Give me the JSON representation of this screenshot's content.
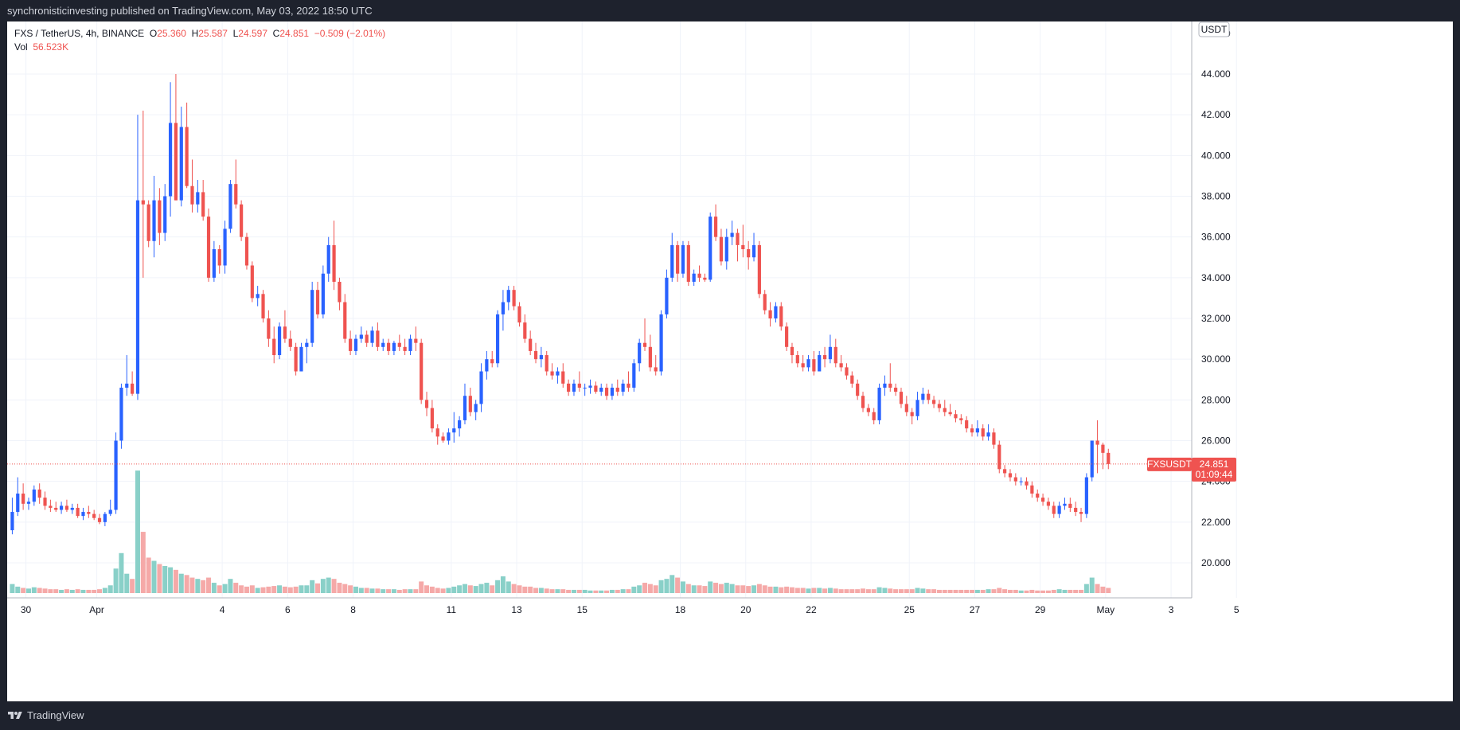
{
  "top_bar": {
    "published_text": "synchronisticinvesting published on TradingView.com, May 03, 2022 18:50 UTC"
  },
  "legend": {
    "symbol": "FXS / TetherUS, 4h, BINANCE",
    "o_label": "O",
    "o_value": "25.360",
    "h_label": "H",
    "h_value": "25.587",
    "l_label": "L",
    "l_value": "24.597",
    "c_label": "C",
    "c_value": "24.851",
    "change": "−0.509 (−2.01%)",
    "vol_label": "Vol",
    "vol_value": "56.523K"
  },
  "currency_badge": "USDT",
  "footer": {
    "brand": "TradingView"
  },
  "colors": {
    "up": "#2962ff",
    "down": "#ef5350",
    "vol_up": "#89d0c8",
    "vol_down": "#f5a9a8",
    "grid": "#f0f3fa"
  },
  "chart_data": {
    "type": "candlestick",
    "symbol": "FXSUSDT",
    "interval": "4h",
    "ylim": [
      19.0,
      46.0
    ],
    "y_ticks": [
      "20.000",
      "22.000",
      "24.000",
      "26.000",
      "28.000",
      "30.000",
      "32.000",
      "34.000",
      "36.000",
      "38.000",
      "40.000",
      "42.000",
      "44.000"
    ],
    "x_ticks": [
      {
        "label": "30",
        "i": 2.5
      },
      {
        "label": "Apr",
        "i": 15.5
      },
      {
        "label": "4",
        "i": 38.5
      },
      {
        "label": "6",
        "i": 50.5
      },
      {
        "label": "8",
        "i": 62.5
      },
      {
        "label": "11",
        "i": 80.5
      },
      {
        "label": "13",
        "i": 92.5
      },
      {
        "label": "15",
        "i": 104.5
      },
      {
        "label": "18",
        "i": 122.5
      },
      {
        "label": "20",
        "i": 134.5
      },
      {
        "label": "22",
        "i": 146.5
      },
      {
        "label": "25",
        "i": 164.5
      },
      {
        "label": "27",
        "i": 176.5
      },
      {
        "label": "29",
        "i": 188.5
      },
      {
        "label": "May",
        "i": 200.5
      },
      {
        "label": "3",
        "i": 212.5
      },
      {
        "label": "5",
        "i": 224.5
      }
    ],
    "last_price": {
      "value": 24.851,
      "label": "FXSUSDT",
      "price_text": "24.851",
      "countdown": "01:09:44"
    },
    "ohlcv": [
      [
        21.6,
        23.2,
        21.4,
        22.5,
        14
      ],
      [
        22.5,
        24.2,
        22.3,
        23.4,
        10
      ],
      [
        23.4,
        23.9,
        22.6,
        22.9,
        8
      ],
      [
        22.9,
        23.2,
        22.6,
        23.0,
        7
      ],
      [
        23.0,
        23.8,
        22.8,
        23.6,
        9
      ],
      [
        23.6,
        23.9,
        22.9,
        23.2,
        8
      ],
      [
        23.2,
        23.5,
        22.6,
        22.8,
        7
      ],
      [
        22.8,
        23.1,
        22.5,
        22.7,
        6
      ],
      [
        22.7,
        23.0,
        22.5,
        22.6,
        6
      ],
      [
        22.6,
        23.0,
        22.4,
        22.8,
        5
      ],
      [
        22.8,
        23.1,
        22.5,
        22.6,
        6
      ],
      [
        22.6,
        22.9,
        22.4,
        22.7,
        5
      ],
      [
        22.7,
        22.9,
        22.2,
        22.3,
        6
      ],
      [
        22.3,
        22.7,
        22.1,
        22.5,
        5
      ],
      [
        22.5,
        22.8,
        22.2,
        22.4,
        5
      ],
      [
        22.4,
        22.6,
        22.1,
        22.2,
        5
      ],
      [
        22.2,
        22.4,
        21.9,
        22.0,
        6
      ],
      [
        22.0,
        22.5,
        21.8,
        22.4,
        8
      ],
      [
        22.4,
        23.1,
        22.3,
        22.6,
        12
      ],
      [
        22.6,
        26.4,
        22.4,
        26.0,
        38
      ],
      [
        26.0,
        28.8,
        25.6,
        28.6,
        62
      ],
      [
        28.6,
        30.2,
        28.2,
        28.8,
        30
      ],
      [
        28.8,
        29.4,
        28.2,
        28.3,
        22
      ],
      [
        28.3,
        42.0,
        28.0,
        37.8,
        190
      ],
      [
        37.8,
        42.2,
        34.0,
        37.6,
        95
      ],
      [
        37.6,
        37.8,
        35.5,
        35.8,
        55
      ],
      [
        35.8,
        39.0,
        35.0,
        37.8,
        50
      ],
      [
        37.8,
        38.4,
        35.6,
        36.2,
        45
      ],
      [
        36.2,
        38.6,
        35.8,
        38.0,
        42
      ],
      [
        38.0,
        43.6,
        37.0,
        41.6,
        40
      ],
      [
        41.6,
        44.0,
        37.8,
        37.8,
        36
      ],
      [
        37.8,
        42.4,
        37.5,
        41.4,
        30
      ],
      [
        41.4,
        42.6,
        38.4,
        38.5,
        28
      ],
      [
        38.5,
        39.8,
        37.2,
        37.6,
        24
      ],
      [
        37.6,
        38.8,
        37.2,
        38.2,
        22
      ],
      [
        38.2,
        38.8,
        36.8,
        37.0,
        20
      ],
      [
        37.0,
        37.4,
        33.8,
        34.0,
        24
      ],
      [
        34.0,
        35.8,
        33.8,
        35.4,
        16
      ],
      [
        35.4,
        35.6,
        34.2,
        34.6,
        12
      ],
      [
        34.6,
        36.8,
        34.2,
        36.4,
        14
      ],
      [
        36.4,
        38.8,
        36.2,
        38.6,
        22
      ],
      [
        38.6,
        39.8,
        37.4,
        37.6,
        16
      ],
      [
        37.6,
        37.8,
        35.8,
        36.0,
        12
      ],
      [
        36.0,
        36.2,
        34.4,
        34.6,
        10
      ],
      [
        34.6,
        34.8,
        32.8,
        33.0,
        12
      ],
      [
        33.0,
        33.6,
        32.6,
        33.2,
        8
      ],
      [
        33.2,
        33.4,
        31.8,
        32.0,
        9
      ],
      [
        32.0,
        32.4,
        30.6,
        31.0,
        10
      ],
      [
        31.0,
        31.6,
        29.8,
        30.2,
        11
      ],
      [
        30.2,
        31.8,
        30.0,
        31.6,
        12
      ],
      [
        31.6,
        32.4,
        30.8,
        31.0,
        10
      ],
      [
        31.0,
        31.4,
        30.4,
        30.6,
        9
      ],
      [
        30.6,
        30.8,
        29.2,
        29.4,
        10
      ],
      [
        29.4,
        30.8,
        29.4,
        30.6,
        12
      ],
      [
        30.6,
        31.0,
        29.8,
        30.8,
        12
      ],
      [
        30.8,
        33.8,
        30.6,
        33.4,
        20
      ],
      [
        33.4,
        33.8,
        32.0,
        32.2,
        15
      ],
      [
        32.2,
        34.6,
        32.0,
        34.2,
        22
      ],
      [
        34.2,
        36.0,
        33.8,
        35.6,
        24
      ],
      [
        35.6,
        36.8,
        33.4,
        33.8,
        22
      ],
      [
        33.8,
        34.0,
        32.4,
        32.8,
        16
      ],
      [
        32.8,
        33.2,
        30.8,
        31.0,
        14
      ],
      [
        31.0,
        31.4,
        30.2,
        30.4,
        12
      ],
      [
        30.4,
        31.2,
        30.2,
        31.0,
        10
      ],
      [
        31.0,
        31.6,
        30.8,
        31.2,
        8
      ],
      [
        31.2,
        31.4,
        30.6,
        30.8,
        8
      ],
      [
        30.8,
        31.6,
        30.6,
        31.4,
        7
      ],
      [
        31.4,
        31.8,
        30.4,
        30.6,
        7
      ],
      [
        30.6,
        31.0,
        30.4,
        30.8,
        6
      ],
      [
        30.8,
        31.0,
        30.2,
        30.4,
        6
      ],
      [
        30.4,
        30.9,
        30.2,
        30.8,
        6
      ],
      [
        30.8,
        31.2,
        30.4,
        30.6,
        5
      ],
      [
        30.6,
        31.0,
        30.2,
        30.4,
        6
      ],
      [
        30.4,
        31.2,
        30.2,
        31.0,
        6
      ],
      [
        31.0,
        31.6,
        30.4,
        30.8,
        6
      ],
      [
        30.8,
        31.0,
        27.8,
        28.0,
        18
      ],
      [
        28.0,
        28.4,
        27.2,
        27.6,
        12
      ],
      [
        27.6,
        28.0,
        26.4,
        26.6,
        10
      ],
      [
        26.6,
        26.8,
        25.8,
        26.2,
        8
      ],
      [
        26.2,
        26.4,
        25.9,
        26.0,
        7
      ],
      [
        26.0,
        26.6,
        25.8,
        26.4,
        8
      ],
      [
        26.4,
        27.4,
        25.9,
        26.6,
        10
      ],
      [
        26.6,
        27.2,
        26.2,
        27.0,
        12
      ],
      [
        27.0,
        28.8,
        26.8,
        28.2,
        14
      ],
      [
        28.2,
        28.6,
        27.2,
        27.4,
        12
      ],
      [
        27.4,
        28.0,
        27.0,
        27.8,
        11
      ],
      [
        27.8,
        29.8,
        27.4,
        29.4,
        14
      ],
      [
        29.4,
        30.4,
        29.0,
        30.0,
        16
      ],
      [
        30.0,
        30.4,
        29.6,
        29.8,
        12
      ],
      [
        29.8,
        32.4,
        29.6,
        32.2,
        20
      ],
      [
        32.2,
        33.4,
        31.4,
        32.8,
        26
      ],
      [
        32.8,
        33.6,
        32.4,
        33.4,
        18
      ],
      [
        33.4,
        33.6,
        32.4,
        32.6,
        14
      ],
      [
        32.6,
        32.8,
        31.6,
        31.8,
        12
      ],
      [
        31.8,
        32.2,
        30.8,
        31.0,
        10
      ],
      [
        31.0,
        31.4,
        30.2,
        30.4,
        10
      ],
      [
        30.4,
        30.8,
        29.8,
        30.0,
        8
      ],
      [
        30.0,
        30.6,
        29.6,
        30.2,
        8
      ],
      [
        30.2,
        30.4,
        29.2,
        29.4,
        7
      ],
      [
        29.4,
        29.8,
        29.0,
        29.2,
        6
      ],
      [
        29.2,
        29.6,
        28.8,
        29.4,
        6
      ],
      [
        29.4,
        29.8,
        28.6,
        28.8,
        6
      ],
      [
        28.8,
        29.0,
        28.2,
        28.4,
        5
      ],
      [
        28.4,
        29.0,
        28.2,
        28.8,
        5
      ],
      [
        28.8,
        29.4,
        28.4,
        28.6,
        5
      ],
      [
        28.6,
        28.8,
        28.2,
        28.6,
        5
      ],
      [
        28.6,
        29.0,
        28.3,
        28.7,
        4
      ],
      [
        28.7,
        28.9,
        28.3,
        28.4,
        4
      ],
      [
        28.4,
        28.8,
        28.2,
        28.6,
        4
      ],
      [
        28.6,
        28.8,
        28.0,
        28.2,
        4
      ],
      [
        28.2,
        28.8,
        28.0,
        28.6,
        5
      ],
      [
        28.6,
        29.0,
        28.2,
        28.4,
        5
      ],
      [
        28.4,
        29.0,
        28.2,
        28.8,
        6
      ],
      [
        28.8,
        29.4,
        28.4,
        28.6,
        6
      ],
      [
        28.6,
        30.0,
        28.4,
        29.8,
        10
      ],
      [
        29.8,
        31.0,
        29.4,
        30.8,
        12
      ],
      [
        30.8,
        32.0,
        30.4,
        30.6,
        16
      ],
      [
        30.6,
        31.2,
        29.4,
        29.6,
        14
      ],
      [
        29.6,
        30.2,
        29.2,
        29.4,
        12
      ],
      [
        29.4,
        32.4,
        29.2,
        32.2,
        20
      ],
      [
        32.2,
        34.4,
        32.0,
        34.0,
        22
      ],
      [
        34.0,
        36.2,
        33.8,
        35.6,
        28
      ],
      [
        35.6,
        35.8,
        33.8,
        34.2,
        24
      ],
      [
        34.2,
        35.8,
        34.0,
        35.6,
        18
      ],
      [
        35.6,
        35.8,
        33.6,
        33.8,
        14
      ],
      [
        33.8,
        34.4,
        33.6,
        34.2,
        12
      ],
      [
        34.2,
        34.6,
        33.8,
        34.0,
        12
      ],
      [
        34.0,
        34.2,
        33.8,
        33.9,
        11
      ],
      [
        33.9,
        37.2,
        33.8,
        37.0,
        18
      ],
      [
        37.0,
        37.6,
        35.8,
        36.0,
        16
      ],
      [
        36.0,
        36.4,
        34.6,
        34.8,
        14
      ],
      [
        34.8,
        36.4,
        34.4,
        36.0,
        16
      ],
      [
        36.0,
        36.8,
        35.6,
        36.2,
        14
      ],
      [
        36.2,
        36.4,
        34.8,
        35.6,
        12
      ],
      [
        35.6,
        36.6,
        35.0,
        35.4,
        12
      ],
      [
        35.4,
        35.8,
        34.4,
        35.0,
        11
      ],
      [
        35.0,
        36.2,
        34.8,
        35.6,
        12
      ],
      [
        35.6,
        35.8,
        33.0,
        33.2,
        14
      ],
      [
        33.2,
        33.4,
        32.2,
        32.4,
        12
      ],
      [
        32.4,
        32.8,
        31.6,
        32.0,
        10
      ],
      [
        32.0,
        32.8,
        31.8,
        32.6,
        10
      ],
      [
        32.6,
        32.8,
        31.4,
        31.6,
        9
      ],
      [
        31.6,
        31.8,
        30.4,
        30.6,
        10
      ],
      [
        30.6,
        30.8,
        29.8,
        30.2,
        9
      ],
      [
        30.2,
        30.4,
        29.6,
        29.8,
        8
      ],
      [
        29.8,
        30.2,
        29.4,
        29.6,
        8
      ],
      [
        29.6,
        30.2,
        29.4,
        30.0,
        7
      ],
      [
        30.0,
        30.4,
        29.2,
        29.4,
        8
      ],
      [
        29.4,
        30.4,
        29.4,
        30.2,
        8
      ],
      [
        30.2,
        30.6,
        29.6,
        30.0,
        7
      ],
      [
        30.0,
        31.2,
        29.8,
        30.6,
        8
      ],
      [
        30.6,
        31.0,
        29.6,
        29.8,
        7
      ],
      [
        29.8,
        30.2,
        29.4,
        29.6,
        6
      ],
      [
        29.6,
        29.8,
        29.0,
        29.2,
        6
      ],
      [
        29.2,
        29.4,
        28.6,
        28.8,
        6
      ],
      [
        28.8,
        29.0,
        28.0,
        28.2,
        6
      ],
      [
        28.2,
        28.4,
        27.4,
        27.6,
        7
      ],
      [
        27.6,
        27.8,
        27.2,
        27.4,
        6
      ],
      [
        27.4,
        27.6,
        26.8,
        27.0,
        6
      ],
      [
        27.0,
        28.8,
        26.8,
        28.6,
        9
      ],
      [
        28.6,
        29.2,
        28.2,
        28.8,
        8
      ],
      [
        28.8,
        29.8,
        28.4,
        28.6,
        7
      ],
      [
        28.6,
        28.8,
        28.2,
        28.4,
        6
      ],
      [
        28.4,
        28.6,
        27.6,
        27.8,
        6
      ],
      [
        27.8,
        28.2,
        27.2,
        27.4,
        6
      ],
      [
        27.4,
        27.6,
        26.8,
        27.2,
        6
      ],
      [
        27.2,
        28.4,
        27.0,
        28.0,
        8
      ],
      [
        28.0,
        28.6,
        27.8,
        28.3,
        7
      ],
      [
        28.3,
        28.5,
        27.8,
        28.0,
        6
      ],
      [
        28.0,
        28.2,
        27.6,
        27.8,
        6
      ],
      [
        27.8,
        28.0,
        27.4,
        27.6,
        5
      ],
      [
        27.6,
        28.0,
        27.2,
        27.4,
        5
      ],
      [
        27.4,
        27.8,
        27.2,
        27.3,
        5
      ],
      [
        27.3,
        27.5,
        26.9,
        27.1,
        5
      ],
      [
        27.1,
        27.3,
        26.8,
        27.0,
        5
      ],
      [
        27.0,
        27.2,
        26.4,
        26.6,
        5
      ],
      [
        26.6,
        26.8,
        26.2,
        26.4,
        5
      ],
      [
        26.4,
        27.0,
        26.2,
        26.6,
        5
      ],
      [
        26.6,
        26.8,
        26.0,
        26.2,
        5
      ],
      [
        26.2,
        26.8,
        26.0,
        26.4,
        6
      ],
      [
        26.4,
        26.6,
        25.6,
        25.8,
        6
      ],
      [
        25.8,
        26.0,
        24.4,
        24.6,
        8
      ],
      [
        24.6,
        24.8,
        24.2,
        24.4,
        6
      ],
      [
        24.4,
        24.6,
        24.0,
        24.2,
        5
      ],
      [
        24.2,
        24.4,
        23.8,
        24.0,
        5
      ],
      [
        24.0,
        24.2,
        23.8,
        24.0,
        4
      ],
      [
        24.0,
        24.2,
        23.6,
        23.8,
        4
      ],
      [
        23.8,
        24.0,
        23.2,
        23.4,
        5
      ],
      [
        23.4,
        23.6,
        23.0,
        23.2,
        4
      ],
      [
        23.2,
        23.4,
        22.8,
        23.0,
        4
      ],
      [
        23.0,
        23.2,
        22.6,
        22.8,
        4
      ],
      [
        22.8,
        23.0,
        22.2,
        22.4,
        5
      ],
      [
        22.4,
        23.0,
        22.2,
        22.8,
        6
      ],
      [
        22.8,
        23.2,
        22.6,
        22.9,
        5
      ],
      [
        22.9,
        23.2,
        22.5,
        22.7,
        5
      ],
      [
        22.7,
        23.0,
        22.3,
        22.5,
        5
      ],
      [
        22.5,
        22.7,
        22.0,
        22.4,
        5
      ],
      [
        22.4,
        24.4,
        22.2,
        24.2,
        14
      ],
      [
        24.2,
        26.0,
        24.0,
        26.0,
        24
      ],
      [
        26.0,
        27.0,
        24.4,
        25.8,
        14
      ],
      [
        25.8,
        25.9,
        24.6,
        25.4,
        10
      ],
      [
        25.4,
        25.6,
        24.6,
        24.851,
        8
      ]
    ]
  }
}
